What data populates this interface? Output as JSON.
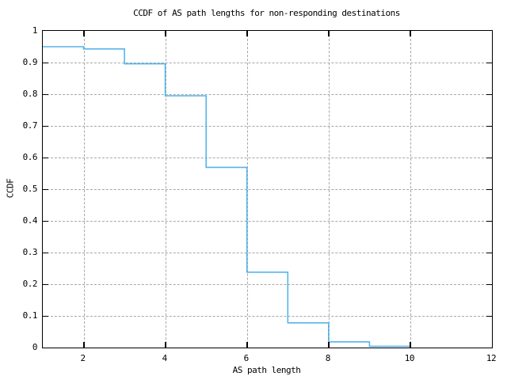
{
  "title": "CCDF of AS path lengths for non-responding destinations",
  "colors": {
    "background": "#ffffff",
    "border": "#000000",
    "grid": "#a6a6a6",
    "line": "#56b4e9",
    "text": "#000000"
  },
  "chart_data": {
    "type": "line",
    "step_style": "post",
    "title": "CCDF of AS path lengths for non-responding destinations",
    "xlabel": "AS path length",
    "ylabel": "CCDF",
    "xlim": [
      1,
      12
    ],
    "ylim": [
      0,
      1
    ],
    "xticks": {
      "values": [
        2,
        4,
        6,
        8,
        10,
        12
      ],
      "labels": [
        "2",
        "4",
        "6",
        "8",
        "10",
        "12"
      ]
    },
    "yticks": {
      "values": [
        0,
        0.1,
        0.2,
        0.3,
        0.4,
        0.5,
        0.6,
        0.7,
        0.8,
        0.9,
        1
      ],
      "labels": [
        "0",
        "0.1",
        "0.2",
        "0.3",
        "0.4",
        "0.5",
        "0.6",
        "0.7",
        "0.8",
        "0.9",
        "1"
      ]
    },
    "grid": true,
    "legend": "none",
    "series": [
      {
        "name": "CCDF of AS path lengths",
        "color": "#56b4e9",
        "steps": [
          [
            1,
            0.95
          ],
          [
            2,
            0.943
          ],
          [
            3,
            0.896
          ],
          [
            4,
            0.795
          ],
          [
            5,
            0.569
          ],
          [
            6,
            0.238
          ],
          [
            7,
            0.078
          ],
          [
            8,
            0.018
          ],
          [
            9,
            0.004
          ],
          [
            10,
            0.0
          ]
        ]
      }
    ]
  }
}
